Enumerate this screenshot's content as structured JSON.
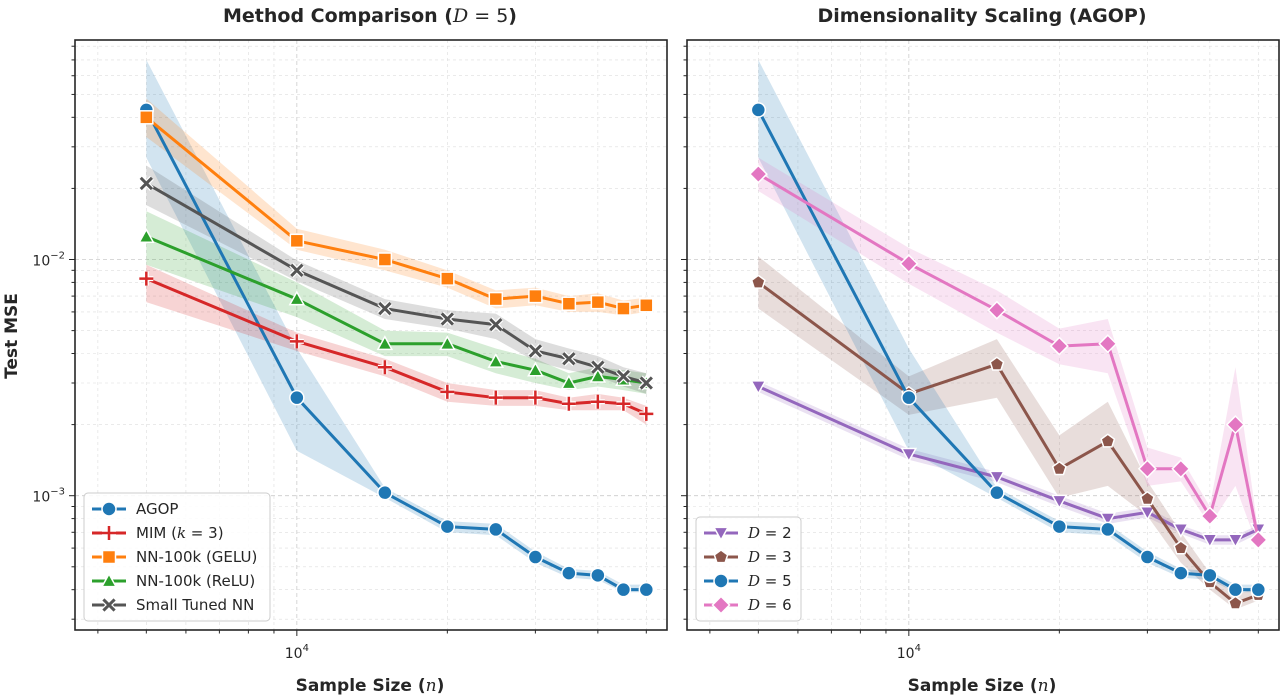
{
  "chart_data": [
    {
      "type": "line",
      "title": "Method Comparison (D = 5)",
      "xlabel": "Sample Size (n)",
      "ylabel": "Test MSE",
      "xscale": "log",
      "yscale": "log",
      "xlim": [
        3600,
        55000
      ],
      "ylim": [
        0.00027,
        0.085
      ],
      "x_tick_labels": [
        "10^4"
      ],
      "y_tick_labels": [
        "10^-3",
        "10^-2"
      ],
      "grid": true,
      "legend_position": "lower-left",
      "x": [
        5000,
        10000,
        15000,
        20000,
        25000,
        30000,
        35000,
        40000,
        45000,
        50000
      ],
      "series": [
        {
          "name": "AGOP",
          "label_text": "AGOP",
          "label_math": "",
          "color": "#1f77b4",
          "marker": "circle",
          "values": [
            0.043,
            0.0026,
            0.00103,
            0.00074,
            0.00072,
            0.00055,
            0.00047,
            0.00046,
            0.0004,
            0.0004
          ],
          "lower": [
            0.027,
            0.00155,
            0.00098,
            0.0007,
            0.00068,
            0.00052,
            0.00045,
            0.00044,
            0.00039,
            0.00039
          ],
          "upper": [
            0.07,
            0.0042,
            0.00108,
            0.00078,
            0.00076,
            0.00058,
            0.00049,
            0.00048,
            0.00042,
            0.00042
          ]
        },
        {
          "name": "MIM (k = 3)",
          "label_text": "MIM (",
          "label_math": "k = 3",
          "label_close": ")",
          "color": "#d62728",
          "marker": "plus",
          "values": [
            0.0083,
            0.0045,
            0.0035,
            0.00275,
            0.0026,
            0.0026,
            0.00245,
            0.0025,
            0.00245,
            0.00222
          ],
          "lower": [
            0.0066,
            0.0041,
            0.0032,
            0.0025,
            0.0024,
            0.0024,
            0.0023,
            0.0023,
            0.0023,
            0.002
          ],
          "upper": [
            0.0095,
            0.0049,
            0.0038,
            0.003,
            0.0028,
            0.0028,
            0.0026,
            0.0027,
            0.0026,
            0.0024
          ]
        },
        {
          "name": "NN-100k (GELU)",
          "label_text": "NN-100k (GELU)",
          "label_math": "",
          "color": "#ff7f0e",
          "marker": "square",
          "values": [
            0.04,
            0.012,
            0.01,
            0.0083,
            0.0068,
            0.007,
            0.0065,
            0.0066,
            0.0062,
            0.0064
          ],
          "lower": [
            0.033,
            0.011,
            0.009,
            0.0076,
            0.0062,
            0.0064,
            0.006,
            0.006,
            0.0058,
            0.006
          ],
          "upper": [
            0.048,
            0.0135,
            0.011,
            0.009,
            0.0074,
            0.0076,
            0.007,
            0.0072,
            0.0067,
            0.0069
          ]
        },
        {
          "name": "NN-100k (ReLU)",
          "label_text": "NN-100k (ReLU)",
          "label_math": "",
          "color": "#2ca02c",
          "marker": "triangle",
          "values": [
            0.0125,
            0.0068,
            0.0044,
            0.0044,
            0.0037,
            0.0034,
            0.003,
            0.0032,
            0.0031,
            0.003
          ],
          "lower": [
            0.0095,
            0.0057,
            0.0039,
            0.0039,
            0.0033,
            0.003,
            0.0028,
            0.0029,
            0.0028,
            0.0027
          ],
          "upper": [
            0.016,
            0.008,
            0.005,
            0.0049,
            0.0042,
            0.0038,
            0.0033,
            0.0035,
            0.0034,
            0.0033
          ]
        },
        {
          "name": "Small Tuned NN",
          "label_text": "Small Tuned NN",
          "label_math": "",
          "color": "#555555",
          "marker": "x",
          "values": [
            0.021,
            0.009,
            0.0062,
            0.0056,
            0.0053,
            0.0041,
            0.0038,
            0.0035,
            0.0032,
            0.003
          ],
          "lower": [
            0.017,
            0.0081,
            0.0056,
            0.0051,
            0.0046,
            0.0037,
            0.0034,
            0.0032,
            0.0029,
            0.0027
          ],
          "upper": [
            0.025,
            0.0099,
            0.0068,
            0.0061,
            0.0059,
            0.0046,
            0.0042,
            0.0039,
            0.0035,
            0.0033
          ]
        }
      ]
    },
    {
      "type": "line",
      "title": "Dimensionality Scaling (AGOP)",
      "xlabel": "Sample Size (n)",
      "ylabel": "",
      "xscale": "log",
      "yscale": "log",
      "xlim": [
        3600,
        55000
      ],
      "ylim": [
        0.00027,
        0.085
      ],
      "x_tick_labels": [
        "10^4"
      ],
      "y_tick_labels": [],
      "grid": true,
      "legend_position": "lower-left",
      "x": [
        5000,
        10000,
        15000,
        20000,
        25000,
        30000,
        35000,
        40000,
        45000,
        50000
      ],
      "series": [
        {
          "name": "D = 2",
          "label_text": "",
          "label_math": "D = 2",
          "color": "#9467bd",
          "marker": "triangle-down",
          "values": [
            0.0029,
            0.0015,
            0.0012,
            0.00095,
            0.0008,
            0.00085,
            0.00072,
            0.00065,
            0.00065,
            0.00072
          ],
          "lower": [
            0.00275,
            0.00142,
            0.00114,
            0.0009,
            0.00076,
            0.00081,
            0.00069,
            0.00062,
            0.00062,
            0.00069
          ],
          "upper": [
            0.00305,
            0.00158,
            0.00126,
            0.001,
            0.00084,
            0.00089,
            0.00075,
            0.00068,
            0.00068,
            0.00075
          ]
        },
        {
          "name": "D = 3",
          "label_text": "",
          "label_math": "D = 3",
          "color": "#8c564b",
          "marker": "pentagon",
          "values": [
            0.008,
            0.0027,
            0.0036,
            0.0013,
            0.0017,
            0.00097,
            0.0006,
            0.00043,
            0.00035,
            0.00038
          ],
          "lower": [
            0.0062,
            0.0022,
            0.0026,
            0.00098,
            0.0011,
            0.00082,
            0.00052,
            0.0004,
            0.00033,
            0.00036
          ],
          "upper": [
            0.0103,
            0.0032,
            0.0046,
            0.0018,
            0.0025,
            0.00115,
            0.0007,
            0.00047,
            0.00038,
            0.00041
          ]
        },
        {
          "name": "D = 5",
          "label_text": "",
          "label_math": "D = 5",
          "color": "#1f77b4",
          "marker": "circle",
          "values": [
            0.043,
            0.0026,
            0.00103,
            0.00074,
            0.00072,
            0.00055,
            0.00047,
            0.00046,
            0.0004,
            0.0004
          ],
          "lower": [
            0.027,
            0.00155,
            0.00098,
            0.0007,
            0.00068,
            0.00052,
            0.00045,
            0.00044,
            0.00039,
            0.00039
          ],
          "upper": [
            0.07,
            0.0042,
            0.00108,
            0.00078,
            0.00076,
            0.00058,
            0.00049,
            0.00048,
            0.00042,
            0.00042
          ]
        },
        {
          "name": "D = 6",
          "label_text": "",
          "label_math": "D = 6",
          "color": "#e377c2",
          "marker": "diamond",
          "values": [
            0.023,
            0.0096,
            0.0061,
            0.0043,
            0.0044,
            0.0013,
            0.0013,
            0.00082,
            0.002,
            0.00065
          ],
          "lower": [
            0.0195,
            0.0079,
            0.0049,
            0.0036,
            0.0033,
            0.0011,
            0.00115,
            0.00075,
            0.0011,
            0.0006
          ],
          "upper": [
            0.027,
            0.0112,
            0.0074,
            0.0051,
            0.0056,
            0.0016,
            0.00145,
            0.0009,
            0.0035,
            0.0007
          ]
        }
      ]
    }
  ]
}
